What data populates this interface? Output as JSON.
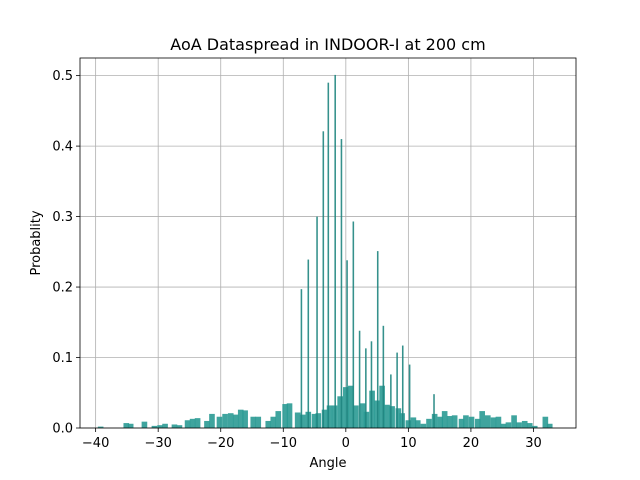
{
  "chart_data": {
    "type": "bar",
    "title": "AoA Dataspread in INDOOR-I at 200 cm",
    "xlabel": "Angle",
    "ylabel": "Probablity",
    "xlim": [
      -42.5,
      36.8
    ],
    "ylim": [
      0,
      0.525
    ],
    "xticks": [
      -40,
      -30,
      -20,
      -10,
      0,
      10,
      20,
      30
    ],
    "yticks": [
      0.0,
      0.1,
      0.2,
      0.3,
      0.4,
      0.5
    ],
    "ytick_labels": [
      "0.0",
      "0.1",
      "0.2",
      "0.3",
      "0.4",
      "0.5"
    ],
    "grid": true,
    "colors": {
      "bar": "#2a9a93",
      "bar_dark": "#1f857f"
    },
    "series": [
      {
        "style": "wide",
        "width": 0.9,
        "x": [
          -39.2,
          -35.1,
          -34.4,
          -32.2,
          -30.6,
          -29.7,
          -28.9,
          -27.4,
          -26.6,
          -25.3,
          -24.5,
          -23.7,
          -22.2,
          -21.4,
          -20.2,
          -19.3,
          -18.4,
          -17.6,
          -16.8,
          -16.1,
          -14.8,
          -14.0,
          -12.4,
          -11.6,
          -10.8,
          -9.7,
          -9.0,
          -7.7,
          -6.9,
          -6.0,
          -5.0,
          -4.4,
          -3.4,
          -2.6,
          -1.8,
          -0.9,
          0.0,
          0.8,
          1.6,
          2.7,
          3.3,
          4.2,
          5.0,
          5.8,
          6.6,
          7.4,
          8.4,
          9.0,
          10.0,
          10.8,
          11.5,
          12.4,
          13.3,
          14.2,
          15.1,
          15.8,
          16.6,
          17.4,
          18.5,
          19.2,
          20.1,
          21.1,
          21.8,
          22.7,
          23.6,
          24.4,
          25.2,
          26.0,
          26.9,
          27.7,
          28.6,
          29.4,
          30.2,
          31.9,
          32.6
        ],
        "values": [
          0.002,
          0.007,
          0.006,
          0.009,
          0.003,
          0.004,
          0.006,
          0.005,
          0.004,
          0.011,
          0.013,
          0.014,
          0.01,
          0.02,
          0.016,
          0.02,
          0.021,
          0.019,
          0.026,
          0.025,
          0.016,
          0.016,
          0.01,
          0.016,
          0.024,
          0.034,
          0.035,
          0.022,
          0.019,
          0.023,
          0.02,
          0.021,
          0.026,
          0.032,
          0.032,
          0.045,
          0.058,
          0.06,
          0.032,
          0.035,
          0.023,
          0.053,
          0.039,
          0.06,
          0.033,
          0.031,
          0.028,
          0.021,
          0.011,
          0.015,
          0.011,
          0.006,
          0.013,
          0.02,
          0.016,
          0.024,
          0.017,
          0.018,
          0.013,
          0.018,
          0.016,
          0.013,
          0.024,
          0.018,
          0.015,
          0.016,
          0.006,
          0.008,
          0.018,
          0.008,
          0.01,
          0.007,
          0.003,
          0.016,
          0.006
        ]
      },
      {
        "style": "narrow",
        "width": 0.25,
        "x": [
          -7.1,
          -6.0,
          -4.6,
          -3.6,
          -2.8,
          -1.7,
          -0.7,
          0.2,
          1.2,
          2.2,
          3.2,
          4.1,
          5.1,
          6.0,
          7.2,
          8.2,
          9.1,
          10.2,
          14.1
        ],
        "values": [
          0.197,
          0.239,
          0.3,
          0.421,
          0.49,
          0.501,
          0.41,
          0.238,
          0.293,
          0.138,
          0.113,
          0.123,
          0.251,
          0.145,
          0.076,
          0.107,
          0.117,
          0.09,
          0.048
        ]
      }
    ]
  }
}
